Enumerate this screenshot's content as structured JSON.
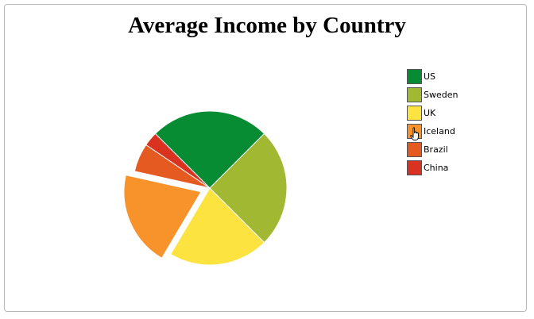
{
  "chart_data": {
    "type": "pie",
    "title": "Average Income by Country",
    "categories": [
      "US",
      "Sweden",
      "UK",
      "Iceland",
      "Brazil",
      "China"
    ],
    "values": [
      25,
      25,
      21,
      20,
      6,
      3
    ],
    "colors": [
      "#078c33",
      "#a1b932",
      "#fce340",
      "#f8922b",
      "#e45a21",
      "#d93220"
    ],
    "exploded": "Iceland",
    "legend_position": "right"
  },
  "pointer": {
    "icon": "hand-pointer-icon"
  }
}
